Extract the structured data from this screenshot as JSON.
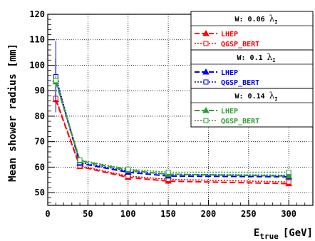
{
  "chart_data": {
    "type": "line",
    "xlabel_main": "E",
    "xlabel_sub": "true",
    "xlabel_unit": "[GeV]",
    "ylabel": "Mean shower radius [mm]",
    "xlim": [
      0,
      330
    ],
    "ylim": [
      45,
      120
    ],
    "xticks": [
      0,
      50,
      100,
      150,
      200,
      250,
      300
    ],
    "yticks": [
      50,
      60,
      70,
      80,
      90,
      100,
      110,
      120
    ],
    "grid": true,
    "x": [
      10,
      40,
      100,
      150,
      300
    ],
    "groups": [
      {
        "title": "W: 0.06",
        "title_symbol": "λ",
        "title_sub": "I",
        "series": [
          {
            "name": "LHEP",
            "style": "dash",
            "marker": "triangle",
            "color": "#ff0000",
            "values": [
              86.5,
              60.2,
              56.0,
              54.5,
              53.5
            ],
            "errors": [
              1.5,
              0,
              0,
              0,
              0
            ]
          },
          {
            "name": "QGSP_BERT",
            "style": "dot",
            "marker": "square",
            "color": "#ff0000",
            "values": [
              87.0,
              60.5,
              56.5,
              55.2,
              54.2
            ],
            "errors": [
              1.5,
              0,
              0,
              0,
              0
            ]
          }
        ]
      },
      {
        "title": "W: 0.1",
        "title_symbol": "λ",
        "title_sub": "I",
        "series": [
          {
            "name": "LHEP",
            "style": "dash",
            "marker": "triangle",
            "color": "#0000ee",
            "values": [
              94.5,
              61.5,
              58.0,
              56.5,
              56.2
            ],
            "errors": [
              8,
              0,
              0,
              0,
              0
            ]
          },
          {
            "name": "QGSP_BERT",
            "style": "dot",
            "marker": "square",
            "color": "#0000ee",
            "values": [
              95.5,
              61.8,
              58.5,
              57.2,
              56.8
            ],
            "errors": [
              14,
              0,
              0,
              0,
              0
            ]
          }
        ]
      },
      {
        "title": "W: 0.14",
        "title_symbol": "λ",
        "title_sub": "I",
        "series": [
          {
            "name": "LHEP",
            "style": "dash",
            "marker": "triangle",
            "color": "#2ca02c",
            "values": [
              93.5,
              62.5,
              58.8,
              57.2,
              56.5
            ],
            "errors": [
              2,
              0,
              0,
              0,
              0
            ]
          },
          {
            "name": "QGSP_BERT",
            "style": "dot",
            "marker": "square",
            "color": "#2ca02c",
            "values": [
              94.0,
              62.8,
              59.2,
              58.0,
              58.0
            ],
            "errors": [
              2,
              0,
              0,
              0,
              0
            ]
          }
        ]
      }
    ]
  }
}
